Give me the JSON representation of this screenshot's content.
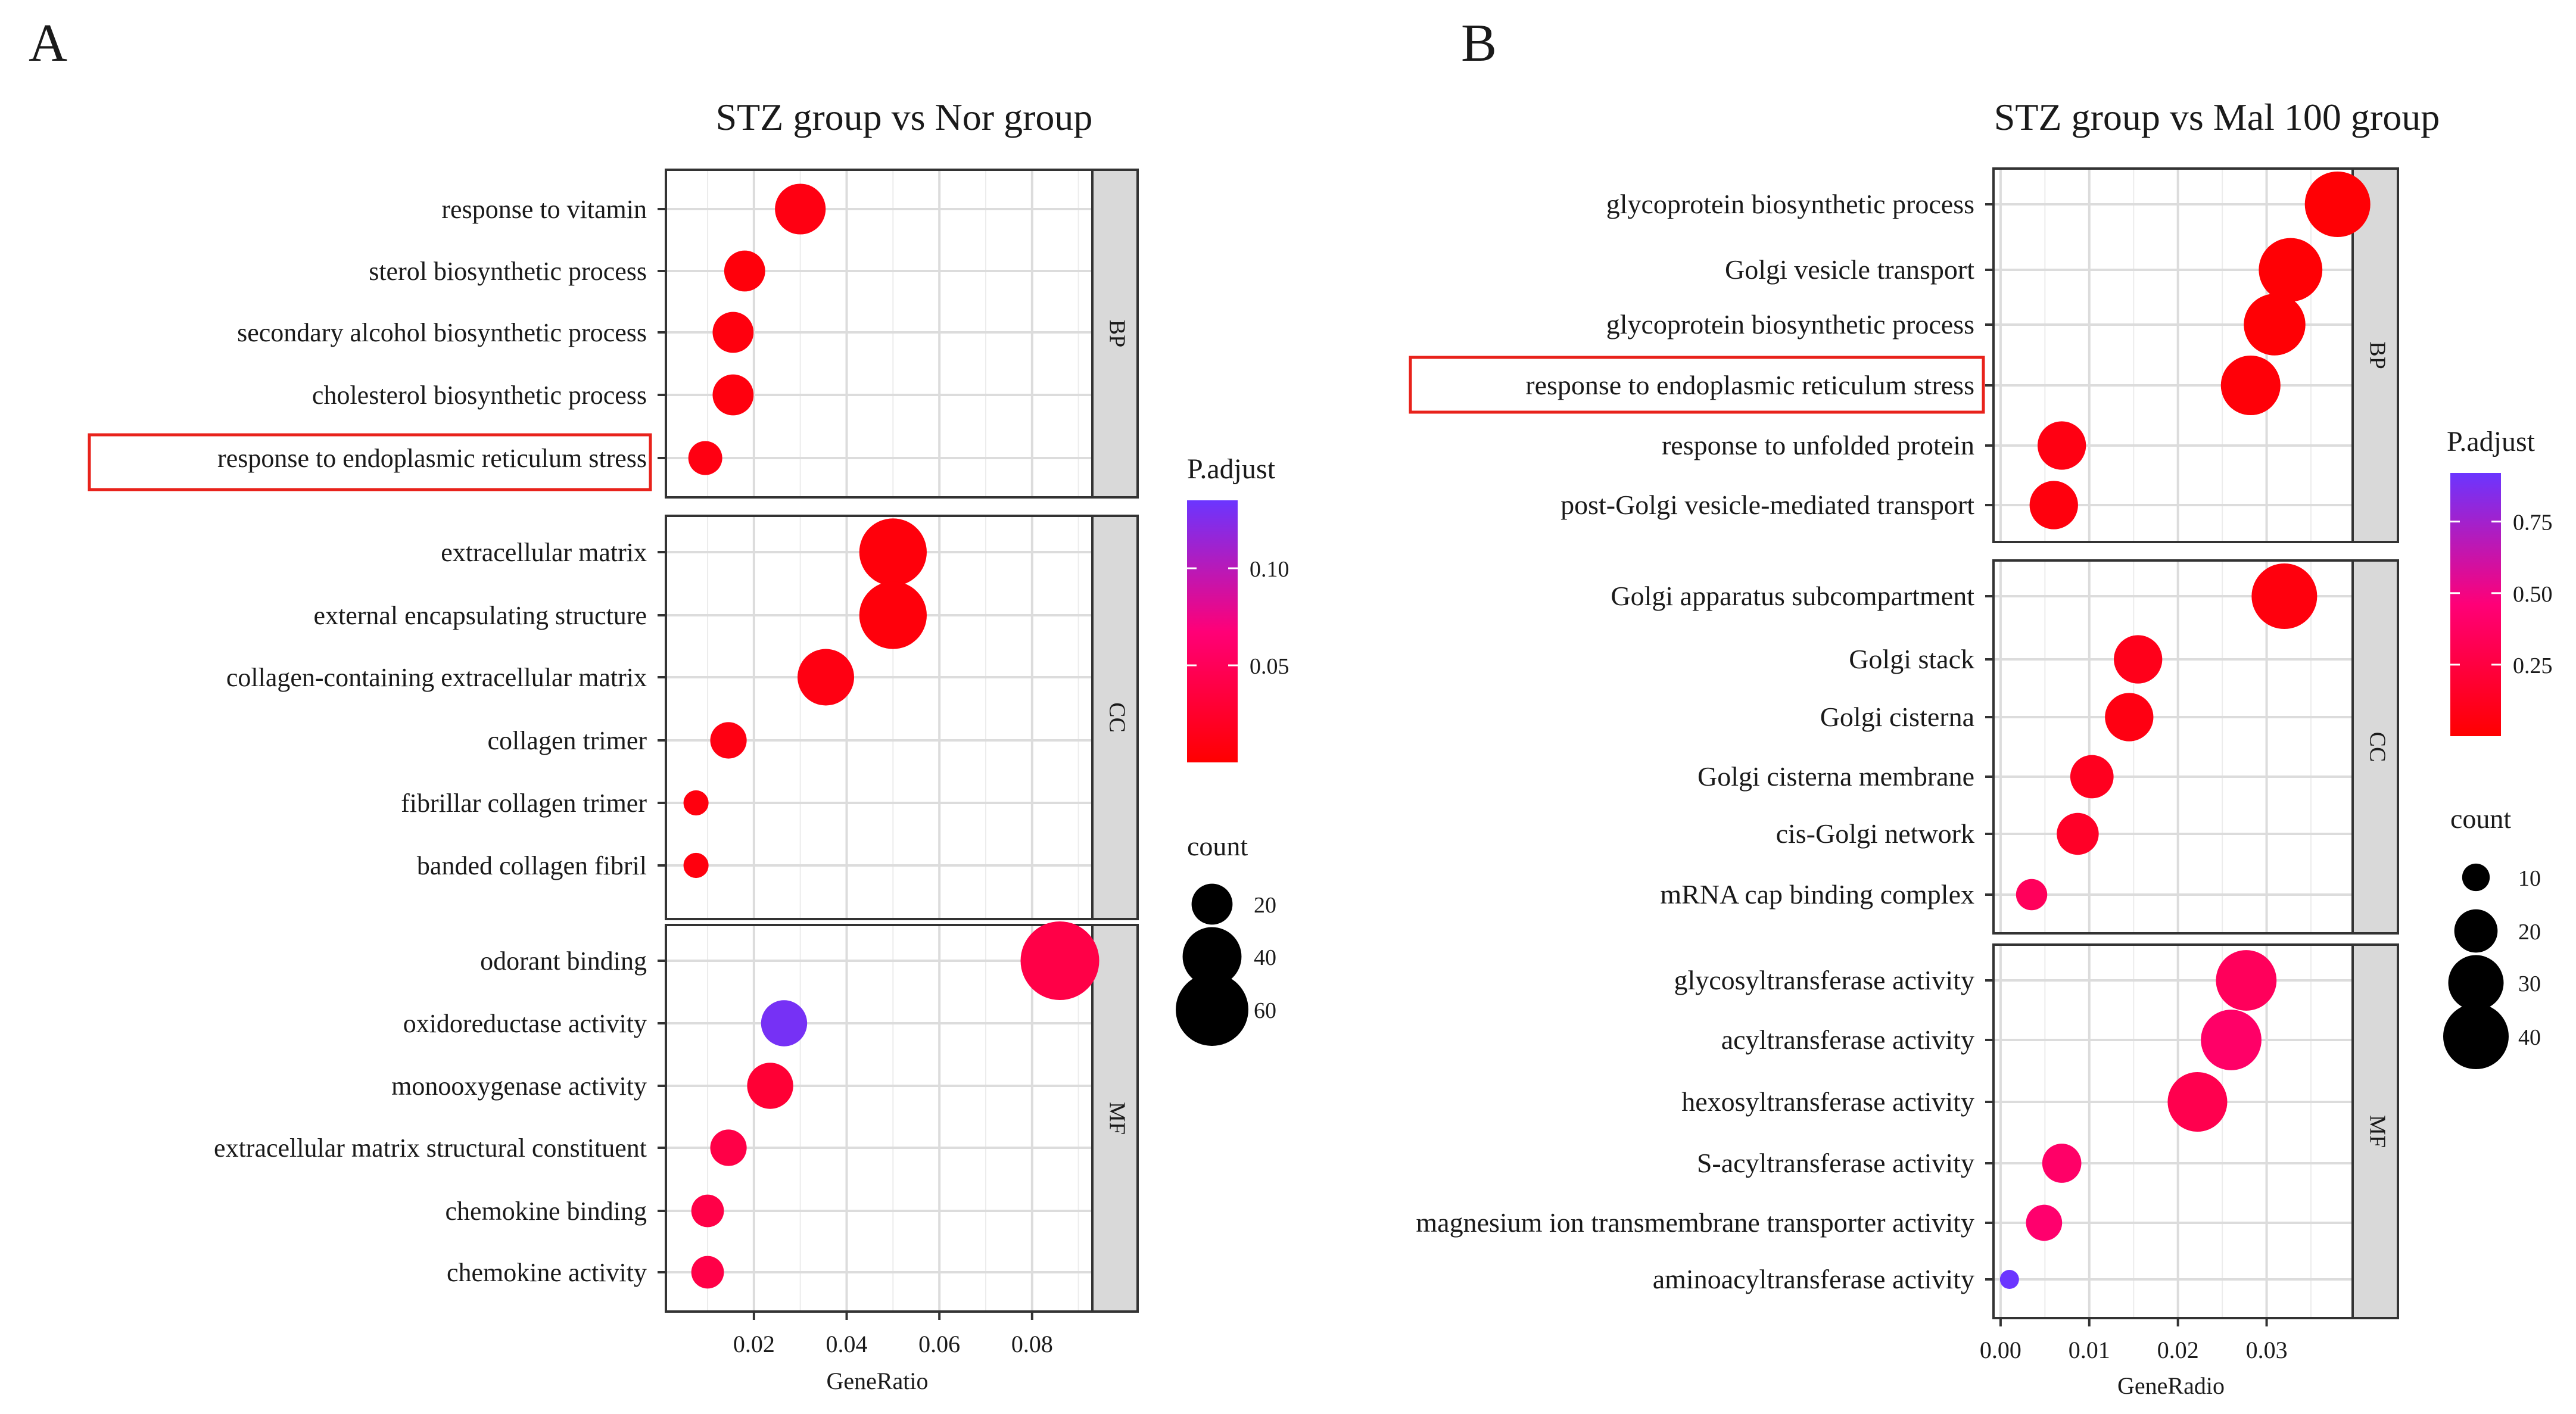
{
  "chart_data": [
    {
      "type": "scatter",
      "panel_label": "A",
      "title": "STZ group vs Nor group",
      "xlabel": "GeneRatio",
      "xlim": [
        0.001,
        0.093
      ],
      "xticks": [
        0.02,
        0.04,
        0.06,
        0.08
      ],
      "xtick_labels": [
        "0.02",
        "0.04",
        "0.06",
        "0.08"
      ],
      "facets": [
        {
          "name": "BP",
          "terms": [
            {
              "label": "response to vitamin",
              "x": 0.03,
              "count": 30,
              "padj": 0.01
            },
            {
              "label": "sterol biosynthetic process",
              "x": 0.018,
              "count": 20,
              "padj": 0.006
            },
            {
              "label": "secondary alcohol biosynthetic process",
              "x": 0.0155,
              "count": 20,
              "padj": 0.008
            },
            {
              "label": "cholesterol biosynthetic process",
              "x": 0.0155,
              "count": 20,
              "padj": 0.008
            },
            {
              "label": "response to endoplasmic reticulum stress",
              "x": 0.0095,
              "count": 14,
              "padj": 0.01
            }
          ]
        },
        {
          "name": "CC",
          "terms": [
            {
              "label": "extracellular matrix",
              "x": 0.05,
              "count": 52,
              "padj": 0.006
            },
            {
              "label": "external encapsulating structure",
              "x": 0.05,
              "count": 52,
              "padj": 0.006
            },
            {
              "label": "collagen-containing extracellular matrix",
              "x": 0.0355,
              "count": 37,
              "padj": 0.01
            },
            {
              "label": "collagen trimer",
              "x": 0.0145,
              "count": 16,
              "padj": 0.01
            },
            {
              "label": "fibrillar collagen trimer",
              "x": 0.0075,
              "count": 8,
              "padj": 0.008
            },
            {
              "label": "banded collagen fibril",
              "x": 0.0075,
              "count": 8,
              "padj": 0.008
            }
          ]
        },
        {
          "name": "MF",
          "terms": [
            {
              "label": "odorant binding",
              "x": 0.086,
              "count": 70,
              "padj": 0.04
            },
            {
              "label": "oxidoreductase activity",
              "x": 0.0265,
              "count": 25,
              "padj": 0.13
            },
            {
              "label": "monooxygenase activity",
              "x": 0.0235,
              "count": 25,
              "padj": 0.03
            },
            {
              "label": "extracellular matrix structural constituent",
              "x": 0.0145,
              "count": 16,
              "padj": 0.04
            },
            {
              "label": "chemokine binding",
              "x": 0.01,
              "count": 13,
              "padj": 0.04
            },
            {
              "label": "chemokine activity",
              "x": 0.01,
              "count": 13,
              "padj": 0.04
            }
          ]
        }
      ],
      "legend_color": {
        "title": "P.adjust",
        "range": [
          0,
          0.135
        ],
        "ticks": [
          0.05,
          0.1
        ],
        "tick_labels": [
          "0.05",
          "0.10"
        ]
      },
      "legend_size": {
        "title": "count",
        "values": [
          20,
          40,
          60
        ],
        "labels": [
          "20",
          "40",
          "60"
        ]
      },
      "highlighted_term": "response to endoplasmic reticulum stress"
    },
    {
      "type": "scatter",
      "panel_label": "B",
      "title": "STZ group vs Mal 100 group",
      "xlabel": "GeneRadio",
      "xlim": [
        -0.0008,
        0.0397
      ],
      "xticks": [
        0,
        0.01,
        0.02,
        0.03
      ],
      "xtick_labels": [
        "0.00",
        "0.01",
        "0.02",
        "0.03"
      ],
      "facets": [
        {
          "name": "BP",
          "terms": [
            {
              "label": "glycoprotein biosynthetic process",
              "x": 0.038,
              "count": 40,
              "padj": 0.02
            },
            {
              "label": "Golgi vesicle transport",
              "x": 0.0327,
              "count": 38,
              "padj": 0.02
            },
            {
              "label": "glycoprotein biosynthetic process",
              "x": 0.0309,
              "count": 36,
              "padj": 0.02
            },
            {
              "label": "response to endoplasmic reticulum stress",
              "x": 0.0282,
              "count": 34,
              "padj": 0.03
            },
            {
              "label": "response to unfolded protein",
              "x": 0.0069,
              "count": 24,
              "padj": 0.07
            },
            {
              "label": "post-Golgi vesicle-mediated transport",
              "x": 0.006,
              "count": 24,
              "padj": 0.05
            }
          ]
        },
        {
          "name": "CC",
          "terms": [
            {
              "label": "Golgi apparatus subcompartment",
              "x": 0.032,
              "count": 40,
              "padj": 0.05
            },
            {
              "label": "Golgi stack",
              "x": 0.0155,
              "count": 24,
              "padj": 0.1
            },
            {
              "label": "Golgi cisterna",
              "x": 0.0145,
              "count": 24,
              "padj": 0.07
            },
            {
              "label": "Golgi cisterna membrane",
              "x": 0.0103,
              "count": 20,
              "padj": 0.12
            },
            {
              "label": "cis-Golgi network",
              "x": 0.0087,
              "count": 19,
              "padj": 0.15
            },
            {
              "label": "mRNA cap binding complex",
              "x": 0.0035,
              "count": 12,
              "padj": 0.35
            }
          ]
        },
        {
          "name": "MF",
          "terms": [
            {
              "label": "glycosyltransferase activity",
              "x": 0.0277,
              "count": 35,
              "padj": 0.35
            },
            {
              "label": "acyltransferase activity",
              "x": 0.026,
              "count": 35,
              "padj": 0.4
            },
            {
              "label": "hexosyltransferase activity",
              "x": 0.0222,
              "count": 34,
              "padj": 0.3
            },
            {
              "label": "S-acyltransferase activity",
              "x": 0.0069,
              "count": 17,
              "padj": 0.4
            },
            {
              "label": "magnesium ion transmembrane transporter activity",
              "x": 0.0049,
              "count": 15,
              "padj": 0.42
            },
            {
              "label": "aminoacyltransferase activity",
              "x": 0.001,
              "count": 6,
              "padj": 0.95
            }
          ]
        }
      ],
      "legend_color": {
        "title": "P.adjust",
        "range": [
          0,
          0.92
        ],
        "ticks": [
          0.25,
          0.5,
          0.75
        ],
        "tick_labels": [
          "0.25",
          "0.50",
          "0.75"
        ]
      },
      "legend_size": {
        "title": "count",
        "values": [
          10,
          20,
          30,
          40
        ],
        "labels": [
          "10",
          "20",
          "30",
          "40"
        ]
      },
      "highlighted_term": "response to endoplasmic reticulum stress"
    }
  ]
}
